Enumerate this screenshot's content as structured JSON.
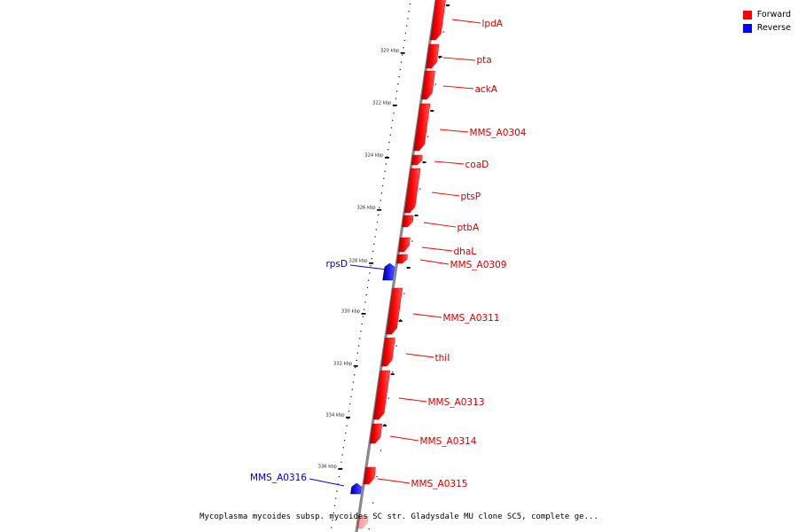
{
  "legend": [
    {
      "label": "Forward",
      "color": "#ff0000"
    },
    {
      "label": "Reverse",
      "color": "#0000ff"
    }
  ],
  "caption": "Mycoplasma mycoides subsp. mycoides SC str. Gladysdale MU clone SC5, complete ge...",
  "ruler": {
    "ticks": [
      "320 kbp",
      "322 kbp",
      "324 kbp",
      "326 kbp",
      "328 kbp",
      "330 kbp",
      "332 kbp",
      "334 kbp",
      "336 kbp"
    ]
  },
  "genes": {
    "forward": [
      "lpdA",
      "pta",
      "ackA",
      "MMS_A0304",
      "coaD",
      "ptsP",
      "ptbA",
      "dhaL",
      "MMS_A0309",
      "MMS_A0311",
      "thiI",
      "MMS_A0313",
      "MMS_A0314",
      "MMS_A0315"
    ],
    "reverse": [
      "rpsD",
      "MMS_A0316"
    ]
  }
}
